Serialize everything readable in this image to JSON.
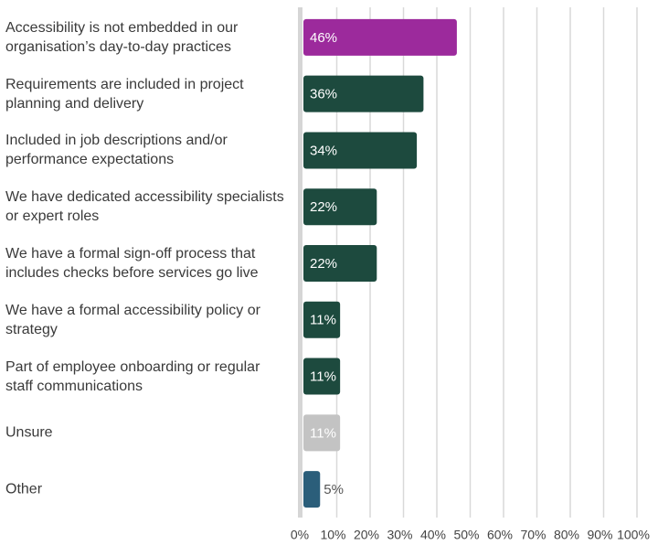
{
  "chart_data": {
    "type": "bar",
    "orientation": "horizontal",
    "categories": [
      "Accessibility is not embedded in our organisation’s day-to-day practices",
      "Requirements are included in project planning and delivery",
      "Included in job descriptions  and/or performance expectations",
      "We have dedicated accessibility specialists or expert roles",
      "We have a formal sign-off process that includes checks before services go live",
      "We have a formal accessibility policy or strategy",
      "Part of employee onboarding or regular staff communications",
      "Unsure",
      "Other"
    ],
    "values": [
      46,
      36,
      34,
      22,
      22,
      11,
      11,
      11,
      5
    ],
    "value_labels": [
      "46%",
      "36%",
      "34%",
      "22%",
      "22%",
      "11%",
      "11%",
      "11%",
      "5%"
    ],
    "colors": [
      "#9c2a9c",
      "#1d4a3e",
      "#1d4a3e",
      "#1d4a3e",
      "#1d4a3e",
      "#1d4a3e",
      "#1d4a3e",
      "#c3c3c3",
      "#2b5e7a"
    ],
    "xlim": [
      0,
      100
    ],
    "xticks": [
      {
        "value": 0,
        "label": "0%"
      },
      {
        "value": 10,
        "label": "10%"
      },
      {
        "value": 20,
        "label": "20%"
      },
      {
        "value": 30,
        "label": "30%"
      },
      {
        "value": 40,
        "label": "40%"
      },
      {
        "value": 50,
        "label": "50%"
      },
      {
        "value": 60,
        "label": "60%"
      },
      {
        "value": 70,
        "label": "70%"
      },
      {
        "value": 80,
        "label": "80%"
      },
      {
        "value": 90,
        "label": "90%"
      },
      {
        "value": 100,
        "label": "100%"
      }
    ],
    "grid": true
  }
}
